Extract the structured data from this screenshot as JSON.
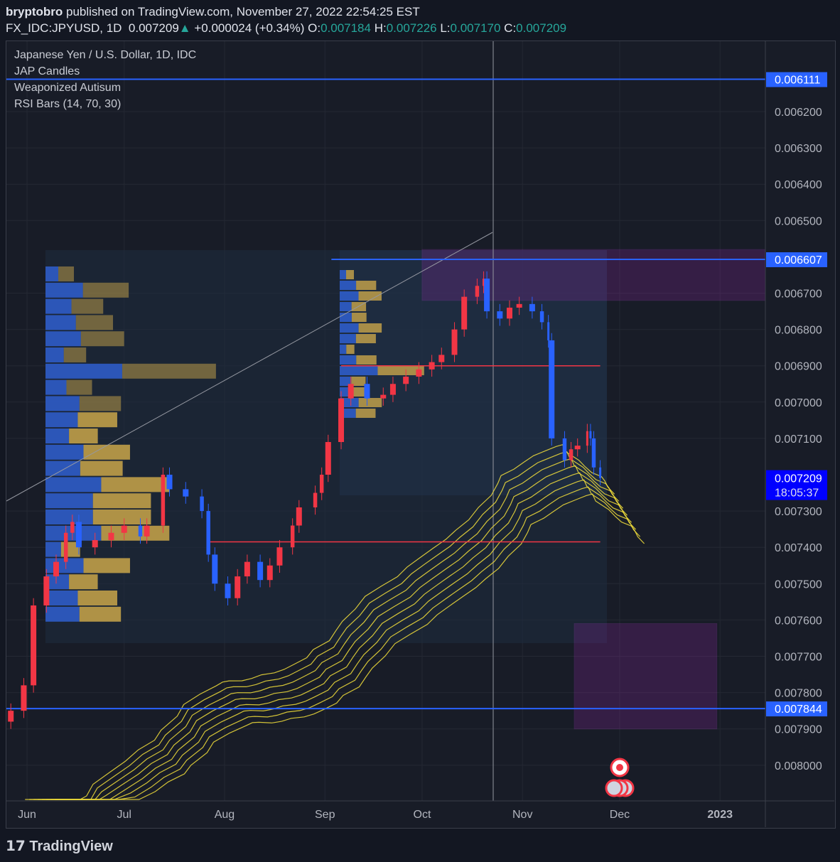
{
  "header": {
    "author": "bryptobro",
    "published": "published on TradingView.com, November 27, 2022 22:54:25 EST",
    "symbol": "FX_IDC:JPYUSD, 1D",
    "price": "0.007209",
    "change": "+0.000024 (+0.34%)",
    "o_label": "O:",
    "o": "0.007184",
    "h_label": "H:",
    "h": "0.007226",
    "l_label": "L:",
    "l": "0.007170",
    "c_label": "C:",
    "c": "0.007209"
  },
  "legend": [
    "Japanese Yen / U.S. Dollar, 1D, IDC",
    "JAP Candles",
    "Weaponized Autisum",
    "RSI Bars (14, 70, 30)"
  ],
  "footer": {
    "brand": "TradingView"
  },
  "colors": {
    "up": "#f23645",
    "down": "#2962ff",
    "level": "#2962ff",
    "red_level": "#f23645",
    "zone": "#9c27b0",
    "ribbon": "#f5e13b",
    "price_label": "#0000ff"
  },
  "chart_data": {
    "type": "candlestick",
    "inverted_price_scale": true,
    "grid": true,
    "ylim": [
      0.0061,
      0.0081
    ],
    "y_ticks": [
      "0.006200",
      "0.006300",
      "0.006400",
      "0.006500",
      "0.006700",
      "0.006800",
      "0.006900",
      "0.007000",
      "0.007100",
      "0.007300",
      "0.007400",
      "0.007500",
      "0.007600",
      "0.007700",
      "0.007800",
      "0.007900",
      "0.008000"
    ],
    "x_ticks": [
      {
        "label": "Jun",
        "date": "2022-06-01"
      },
      {
        "label": "Jul",
        "date": "2022-07-01"
      },
      {
        "label": "Aug",
        "date": "2022-08-01"
      },
      {
        "label": "Sep",
        "date": "2022-09-01"
      },
      {
        "label": "Oct",
        "date": "2022-10-01"
      },
      {
        "label": "Nov",
        "date": "2022-11-01"
      },
      {
        "label": "Dec",
        "date": "2022-12-01"
      },
      {
        "label": "2023",
        "date": "2023-01-01"
      }
    ],
    "closes": [
      [
        "2022-05-27",
        0.00785
      ],
      [
        "2022-05-31",
        0.00778
      ],
      [
        "2022-06-03",
        0.00756
      ],
      [
        "2022-06-07",
        0.00748
      ],
      [
        "2022-06-10",
        0.00744
      ],
      [
        "2022-06-13",
        0.00736
      ],
      [
        "2022-06-15",
        0.00733
      ],
      [
        "2022-06-17",
        0.0074
      ],
      [
        "2022-06-22",
        0.00738
      ],
      [
        "2022-06-27",
        0.00736
      ],
      [
        "2022-07-01",
        0.00734
      ],
      [
        "2022-07-06",
        0.00737
      ],
      [
        "2022-07-08",
        0.00734
      ],
      [
        "2022-07-13",
        0.0072
      ],
      [
        "2022-07-15",
        0.00724
      ],
      [
        "2022-07-20",
        0.00726
      ],
      [
        "2022-07-25",
        0.0073
      ],
      [
        "2022-07-27",
        0.00742
      ],
      [
        "2022-07-29",
        0.0075
      ],
      [
        "2022-08-02",
        0.00754
      ],
      [
        "2022-08-05",
        0.00748
      ],
      [
        "2022-08-08",
        0.00744
      ],
      [
        "2022-08-12",
        0.00749
      ],
      [
        "2022-08-15",
        0.00745
      ],
      [
        "2022-08-18",
        0.0074
      ],
      [
        "2022-08-22",
        0.00734
      ],
      [
        "2022-08-24",
        0.00729
      ],
      [
        "2022-08-29",
        0.00725
      ],
      [
        "2022-08-31",
        0.0072
      ],
      [
        "2022-09-02",
        0.00711
      ],
      [
        "2022-09-06",
        0.00699
      ],
      [
        "2022-09-09",
        0.00695
      ],
      [
        "2022-09-14",
        0.00699
      ],
      [
        "2022-09-19",
        0.00698
      ],
      [
        "2022-09-22",
        0.00695
      ],
      [
        "2022-09-26",
        0.00693
      ],
      [
        "2022-09-30",
        0.00691
      ],
      [
        "2022-10-04",
        0.00689
      ],
      [
        "2022-10-07",
        0.00687
      ],
      [
        "2022-10-11",
        0.0068
      ],
      [
        "2022-10-14",
        0.00671
      ],
      [
        "2022-10-18",
        0.00668
      ],
      [
        "2022-10-20",
        0.00666
      ],
      [
        "2022-10-21",
        0.00675
      ],
      [
        "2022-10-25",
        0.00677
      ],
      [
        "2022-10-28",
        0.00674
      ],
      [
        "2022-10-31",
        0.00673
      ],
      [
        "2022-11-04",
        0.00675
      ],
      [
        "2022-11-07",
        0.00678
      ],
      [
        "2022-11-09",
        0.00683
      ],
      [
        "2022-11-10",
        0.0071
      ],
      [
        "2022-11-14",
        0.00716
      ],
      [
        "2022-11-16",
        0.00713
      ],
      [
        "2022-11-18",
        0.00712
      ],
      [
        "2022-11-21",
        0.00708
      ],
      [
        "2022-11-22",
        0.0071
      ],
      [
        "2022-11-23",
        0.00718
      ],
      [
        "2022-11-25",
        0.007209
      ]
    ],
    "levels": [
      {
        "label": "0.006111",
        "price": 0.006111,
        "color": "#2962ff"
      },
      {
        "label": "0.006607",
        "price": 0.006607,
        "color": "#2962ff",
        "from": "2022-09-03"
      },
      {
        "label": "0.007844",
        "price": 0.007844,
        "color": "#2962ff"
      }
    ],
    "red_levels": [
      {
        "price": 0.0069,
        "from": "2022-09-06",
        "to": "2022-11-25"
      },
      {
        "price": 0.007385,
        "from": "2022-07-27",
        "to": "2022-11-25"
      }
    ],
    "zones": [
      {
        "from": "2022-10-01",
        "to": "2023-02-15",
        "top": 0.00658,
        "bottom": 0.00672
      },
      {
        "from": "2022-11-17",
        "to": "2022-12-31",
        "top": 0.00761,
        "bottom": 0.0079
      }
    ],
    "last_price": {
      "label": "0.007209",
      "countdown": "18:05:37"
    }
  }
}
